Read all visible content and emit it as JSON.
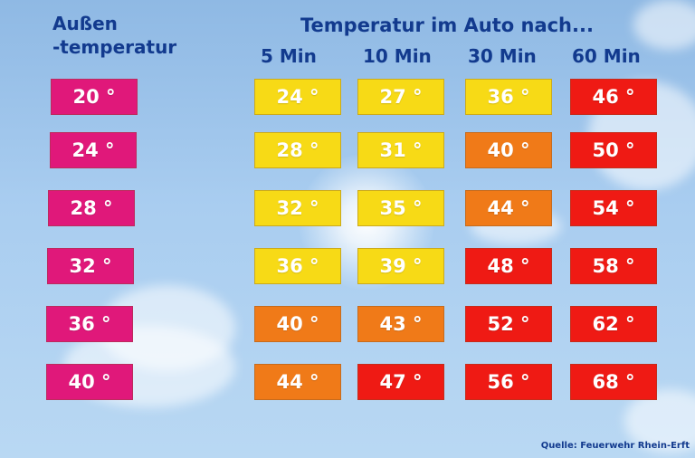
{
  "outside_header": [
    "Außen",
    "-temperatur"
  ],
  "inside_header": "Temperatur im Auto nach...",
  "time_labels": [
    "5 Min",
    "10 Min",
    "30 Min",
    "60 Min"
  ],
  "rows": [
    {
      "outside": "20 °",
      "values": [
        "24 °",
        "27 °",
        "36 °",
        "46 °"
      ]
    },
    {
      "outside": "24 °",
      "values": [
        "28 °",
        "31 °",
        "40 °",
        "50 °"
      ]
    },
    {
      "outside": "28 °",
      "values": [
        "32 °",
        "35 °",
        "44 °",
        "54 °"
      ]
    },
    {
      "outside": "32 °",
      "values": [
        "36 °",
        "39 °",
        "48 °",
        "58 °"
      ]
    },
    {
      "outside": "36 °",
      "values": [
        "40 °",
        "43 °",
        "52 °",
        "62 °"
      ]
    },
    {
      "outside": "40 °",
      "values": [
        "44 °",
        "47 °",
        "56 °",
        "68 °"
      ]
    }
  ],
  "cell_levels": [
    [
      "yellow",
      "yellow",
      "yellow",
      "red"
    ],
    [
      "yellow",
      "yellow",
      "orange",
      "red"
    ],
    [
      "yellow",
      "yellow",
      "orange",
      "red"
    ],
    [
      "yellow",
      "yellow",
      "red",
      "red"
    ],
    [
      "orange",
      "orange",
      "red",
      "red"
    ],
    [
      "orange",
      "red",
      "red",
      "red"
    ]
  ],
  "colors": {
    "outside": "#e0187a",
    "yellow": "#f7da16",
    "orange": "#f07a18",
    "red": "#ef1a14",
    "header_text": "#123a8e"
  },
  "source": "Quelle: Feuerwehr Rhein-Erft"
}
